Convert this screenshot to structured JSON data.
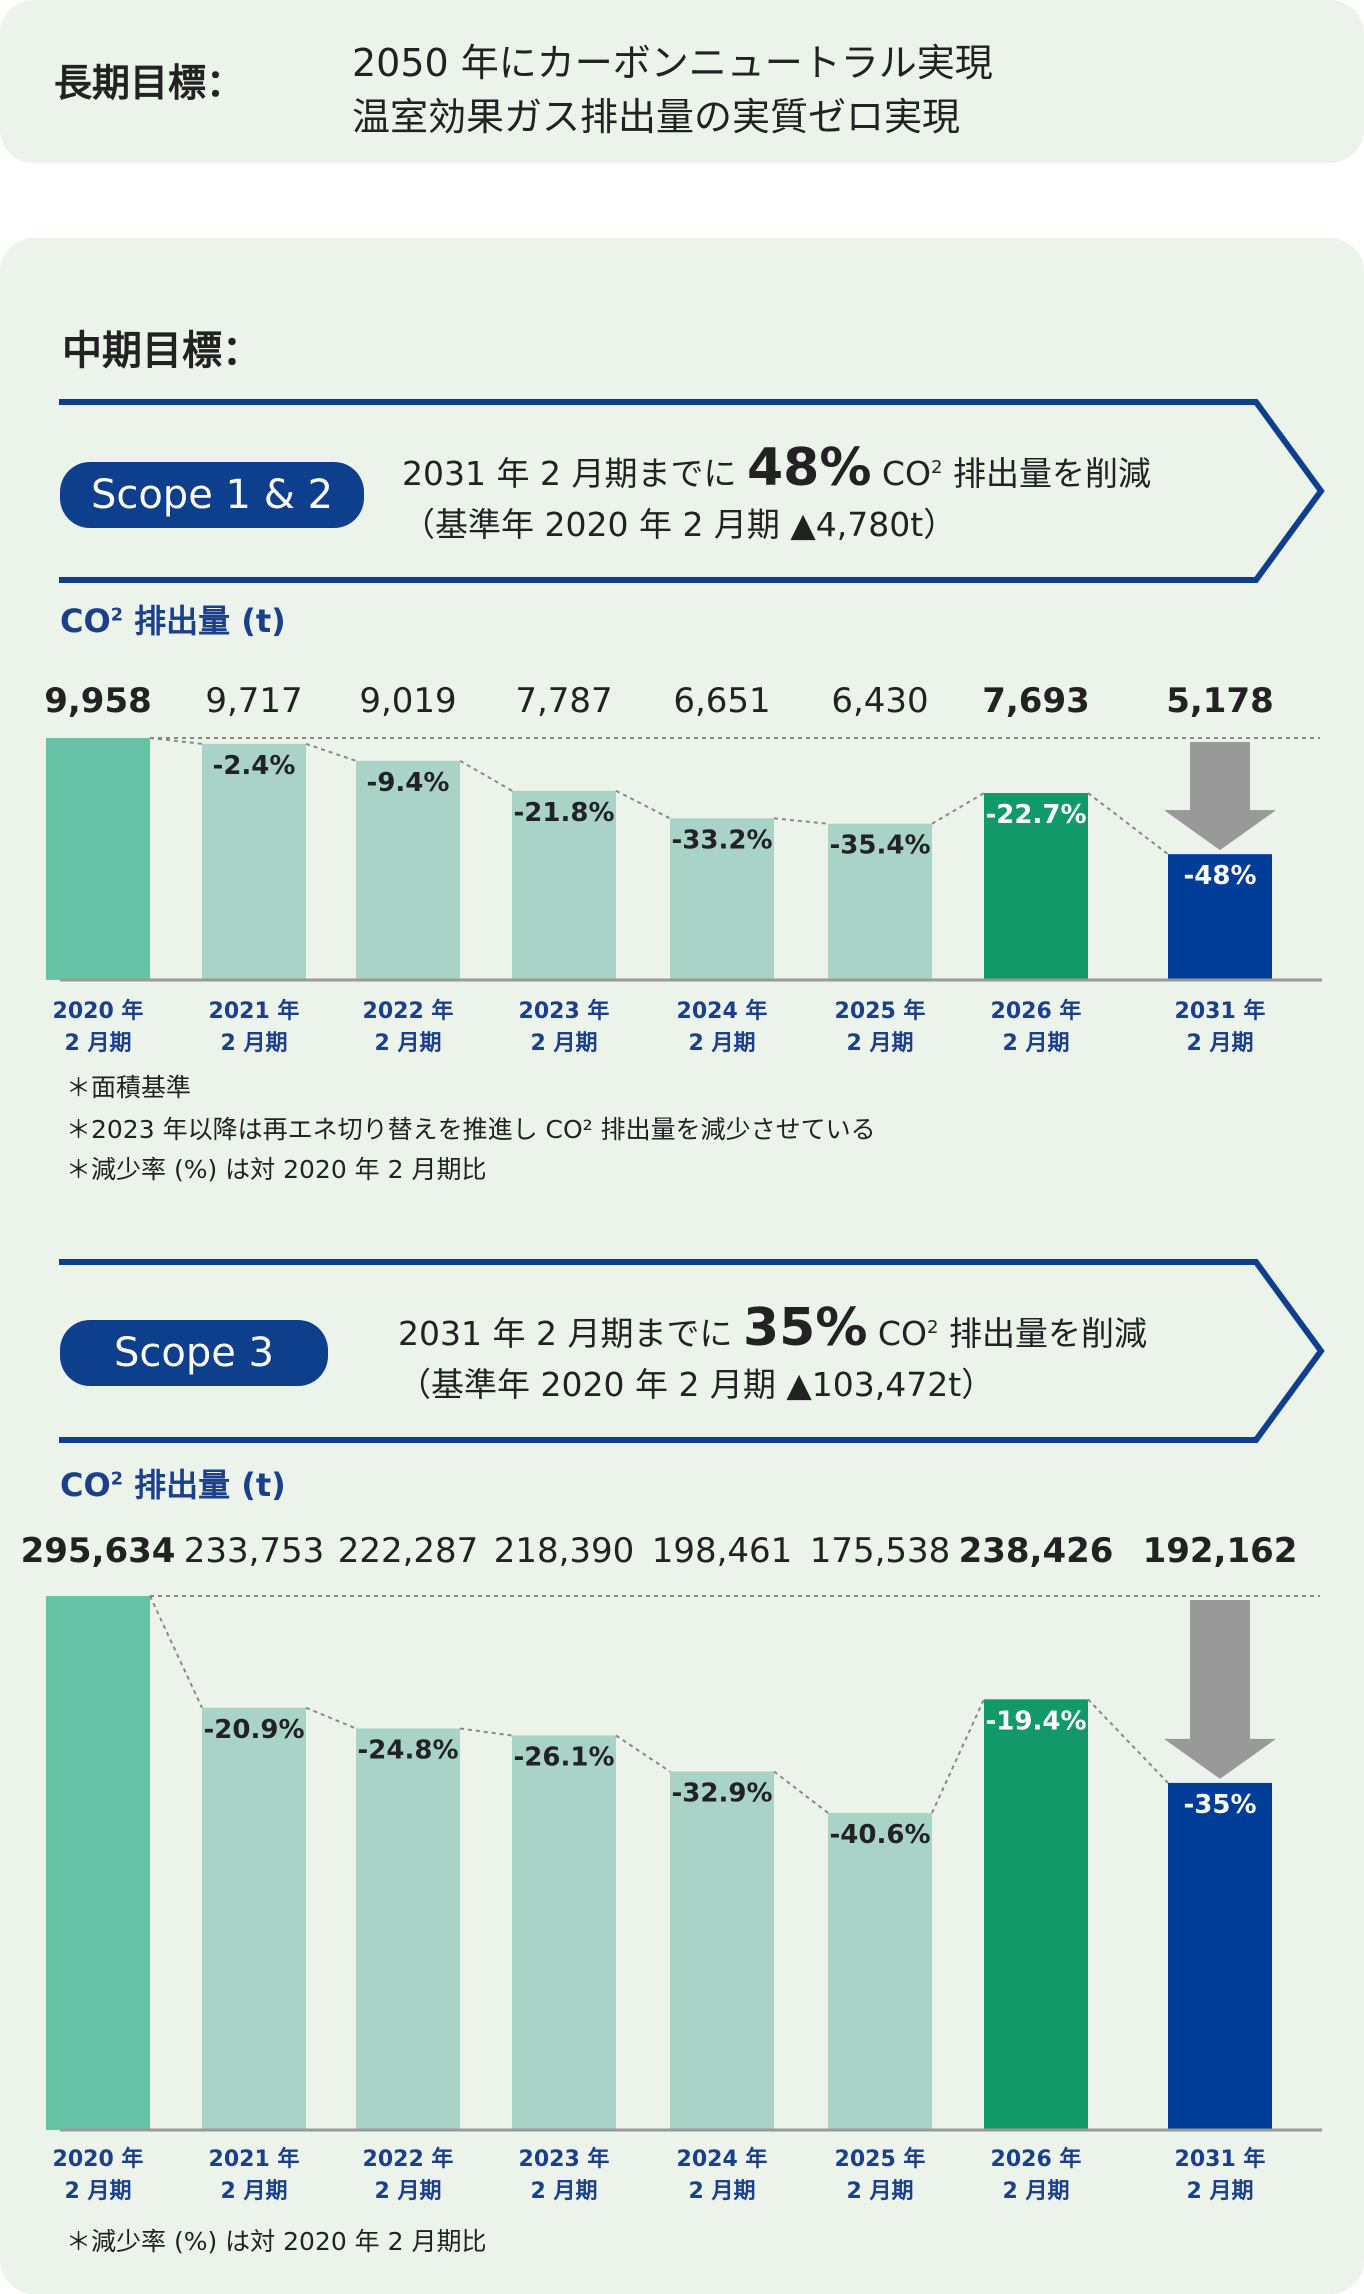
{
  "long_term": {
    "label": "長期目標：",
    "line1": "2050 年にカーボンニュートラル実現",
    "line2": "温室効果ガス排出量の実質ゼロ実現"
  },
  "mid_term": {
    "label": "中期目標："
  },
  "colors": {
    "panel_bg": "#ebf3eb",
    "navy": "#0d3f8c",
    "bar_light": "#a8d3c6",
    "bar_base": "#68c2a6",
    "bar_2026": "#11996a",
    "bar_target": "#003d99",
    "arrow_gray": "#999999"
  },
  "scope12": {
    "pill": "Scope 1 & 2",
    "target_prefix": "2031 年 2 月期までに",
    "target_pct": "48%",
    "target_co": "CO",
    "target_sub": "2",
    "target_suffix": "排出量を削減",
    "baseline": "（基準年 2020 年 2 月期 ▲4,780t）",
    "ylabel_co": "CO",
    "ylabel_sub": "2",
    "ylabel_rest": "排出量 (t)",
    "notes": [
      "＊面積基準",
      "＊2023 年以降は再エネ切り替えを推進し CO² 排出量を減少させている",
      "＊減少率 (%) は対 2020 年 2 月期比"
    ]
  },
  "scope3": {
    "pill": "Scope 3",
    "target_prefix": "2031 年 2 月期までに",
    "target_pct": "35%",
    "target_co": "CO",
    "target_sub": "2",
    "target_suffix": "排出量を削減",
    "baseline": "（基準年 2020 年 2 月期 ▲103,472t）",
    "ylabel_co": "CO",
    "ylabel_sub": "2",
    "ylabel_rest": "排出量 (t)",
    "notes": [
      "＊減少率 (%) は対 2020 年 2 月期比"
    ]
  },
  "chart_data": [
    {
      "type": "bar",
      "title": "Scope 1 & 2",
      "ylabel": "CO2 排出量 (t)",
      "categories": [
        "2020 年\n2 月期",
        "2021 年\n2 月期",
        "2022 年\n2 月期",
        "2023 年\n2 月期",
        "2024 年\n2 月期",
        "2025 年\n2 月期",
        "2026 年\n2 月期",
        "2031 年\n2 月期"
      ],
      "values": [
        9958,
        9717,
        9019,
        7787,
        6651,
        6430,
        7693,
        5178
      ],
      "value_labels": [
        "9,958",
        "9,717",
        "9,019",
        "7,787",
        "6,651",
        "6,430",
        "7,693",
        "5,178"
      ],
      "change_labels": [
        "",
        "-2.4%",
        "-9.4%",
        "-21.8%",
        "-33.2%",
        "-35.4%",
        "-22.7%",
        "-48%"
      ],
      "bold": [
        true,
        false,
        false,
        false,
        false,
        false,
        true,
        true
      ]
    },
    {
      "type": "bar",
      "title": "Scope 3",
      "ylabel": "CO2 排出量 (t)",
      "categories": [
        "2020 年\n2 月期",
        "2021 年\n2 月期",
        "2022 年\n2 月期",
        "2023 年\n2 月期",
        "2024 年\n2 月期",
        "2025 年\n2 月期",
        "2026 年\n2 月期",
        "2031 年\n2 月期"
      ],
      "values": [
        295634,
        233753,
        222287,
        218390,
        198461,
        175538,
        238426,
        192162
      ],
      "value_labels": [
        "295,634",
        "233,753",
        "222,287",
        "218,390",
        "198,461",
        "175,538",
        "238,426",
        "192,162"
      ],
      "change_labels": [
        "",
        "-20.9%",
        "-24.8%",
        "-26.1%",
        "-32.9%",
        "-40.6%",
        "-19.4%",
        "-35%"
      ],
      "bold": [
        true,
        false,
        false,
        false,
        false,
        false,
        true,
        true
      ]
    }
  ]
}
